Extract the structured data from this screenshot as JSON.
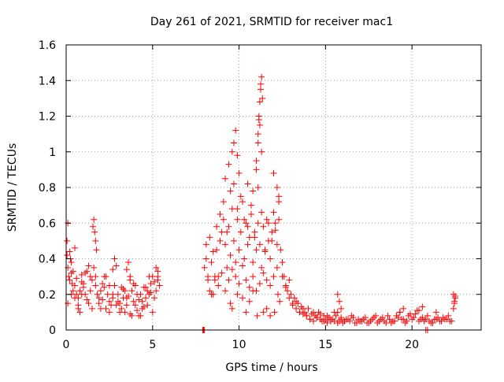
{
  "chart_data": {
    "type": "scatter",
    "title": "Day 261 of 2021, SRMTID for receiver mac1",
    "xlabel": "GPS time / hours",
    "ylabel": "SRMTID / TECUs",
    "xlim": [
      0,
      24
    ],
    "ylim": [
      0,
      1.6
    ],
    "xticks": [
      0,
      5,
      10,
      15,
      20
    ],
    "xtick_labels": [
      "0",
      "5",
      "10",
      "15",
      "20"
    ],
    "yticks": [
      0,
      0.2,
      0.4,
      0.6,
      0.8,
      1,
      1.2,
      1.4,
      1.6
    ],
    "ytick_labels": [
      "0",
      "0.2",
      "0.4",
      "0.6",
      "0.8",
      "1",
      "1.2",
      "1.4",
      "1.6"
    ],
    "grid": true,
    "marker": "+",
    "color": "#ff0000",
    "series": [
      {
        "name": "SRMTID",
        "x": [
          0.05,
          0.1,
          0.15,
          0.2,
          0.25,
          0.3,
          0.35,
          0.4,
          0.5,
          0.6,
          0.7,
          0.8,
          0.9,
          1.0,
          1.1,
          1.2,
          1.3,
          1.4,
          1.5,
          1.6,
          1.7,
          1.8,
          1.9,
          2.0,
          2.1,
          2.2,
          2.3,
          2.4,
          2.5,
          2.6,
          2.7,
          2.8,
          2.9,
          3.0,
          3.1,
          3.2,
          3.3,
          3.4,
          3.5,
          3.6,
          3.7,
          3.8,
          3.9,
          4.0,
          4.1,
          4.2,
          4.3,
          4.4,
          4.5,
          4.6,
          4.7,
          4.8,
          4.9,
          5.0,
          5.1,
          5.2,
          5.3,
          5.4,
          0.05,
          0.1,
          0.2,
          0.3,
          0.4,
          0.5,
          0.6,
          0.7,
          0.8,
          0.9,
          1.0,
          1.2,
          1.4,
          1.55,
          1.6,
          1.65,
          1.7,
          1.75,
          2.0,
          2.2,
          2.5,
          2.7,
          2.8,
          3.0,
          3.2,
          3.4,
          3.5,
          3.6,
          3.7,
          3.8,
          4.0,
          4.2,
          4.4,
          4.6,
          4.8,
          5.0,
          5.2,
          5.3,
          0.1,
          0.3,
          0.5,
          0.7,
          0.9,
          1.1,
          1.3,
          1.5,
          1.7,
          1.9,
          2.1,
          2.3,
          2.5,
          2.7,
          2.9,
          3.1,
          3.3,
          3.5,
          3.7,
          3.9,
          4.1,
          4.3,
          4.5,
          4.7,
          4.9,
          5.1,
          5.3,
          7.9,
          7.95,
          8.0,
          8.0,
          8.1,
          8.2,
          8.3,
          8.4,
          8.5,
          8.6,
          8.7,
          8.8,
          8.9,
          9.0,
          9.1,
          9.2,
          9.3,
          9.4,
          9.5,
          9.6,
          9.7,
          9.8,
          9.9,
          10.0,
          10.1,
          10.2,
          10.3,
          10.4,
          10.5,
          10.6,
          10.7,
          10.8,
          10.9,
          11.0,
          11.1,
          11.2,
          11.3,
          11.4,
          11.5,
          11.6,
          11.7,
          11.8,
          11.9,
          12.0,
          12.1,
          12.2,
          12.3,
          8.2,
          8.4,
          8.6,
          8.8,
          9.0,
          9.2,
          9.4,
          9.6,
          9.8,
          10.0,
          10.2,
          10.4,
          10.6,
          10.8,
          11.0,
          11.2,
          11.4,
          11.6,
          11.8,
          12.0,
          12.2,
          8.1,
          8.3,
          8.5,
          8.7,
          8.9,
          9.1,
          9.3,
          9.5,
          9.7,
          9.9,
          10.1,
          10.3,
          10.5,
          10.7,
          10.9,
          11.1,
          11.3,
          11.5,
          11.7,
          11.9,
          12.1,
          12.3,
          9.2,
          9.4,
          9.6,
          9.7,
          9.8,
          9.9,
          10.0,
          10.5,
          10.8,
          11.0,
          11.1,
          11.15,
          11.2,
          11.25,
          11.3,
          11.35,
          11.1,
          11.2,
          11.0,
          11.3,
          11.15,
          11.25,
          12.0,
          12.2,
          12.3,
          9.5,
          9.6,
          9.9,
          10.2,
          10.4,
          10.6,
          10.8,
          11.05,
          11.4,
          11.6,
          11.8,
          12.05,
          12.25,
          12.35,
          12.4,
          12.5,
          12.6,
          12.7,
          12.8,
          12.9,
          13.0,
          13.1,
          13.2,
          13.3,
          13.4,
          13.5,
          13.6,
          13.7,
          13.8,
          13.9,
          14.0,
          14.1,
          14.2,
          14.3,
          14.4,
          14.5,
          14.6,
          14.7,
          14.8,
          14.9,
          15.0,
          15.1,
          15.2,
          15.3,
          15.4,
          15.5,
          15.6,
          15.7,
          15.8,
          15.9,
          16.0,
          16.2,
          16.4,
          16.6,
          16.8,
          17.0,
          17.2,
          17.4,
          17.6,
          17.8,
          18.0,
          18.2,
          18.4,
          18.6,
          18.8,
          19.0,
          19.2,
          19.4,
          19.6,
          19.8,
          20.0,
          20.2,
          20.4,
          20.6,
          20.8,
          21.0,
          21.2,
          21.4,
          21.6,
          21.8,
          22.0,
          22.2,
          22.4,
          22.5,
          12.5,
          12.7,
          12.9,
          13.1,
          13.3,
          13.5,
          13.7,
          13.9,
          14.1,
          14.3,
          14.5,
          14.7,
          14.9,
          15.1,
          15.3,
          15.5,
          15.7,
          15.9,
          16.1,
          16.3,
          16.5,
          16.7,
          16.9,
          17.1,
          17.3,
          17.5,
          17.7,
          17.9,
          18.1,
          18.3,
          18.5,
          18.7,
          18.9,
          19.1,
          19.3,
          19.5,
          19.7,
          19.9,
          20.1,
          20.3,
          20.5,
          20.7,
          20.9,
          21.1,
          21.3,
          21.5,
          21.7,
          21.9,
          22.1,
          22.3,
          22.45,
          15.7,
          15.8,
          15.9,
          19.3,
          19.5,
          20.4,
          20.6,
          21.4,
          22.4,
          22.45,
          22.5,
          20.8,
          20.9
        ],
        "y": [
          0.42,
          0.35,
          0.3,
          0.28,
          0.4,
          0.32,
          0.26,
          0.22,
          0.25,
          0.2,
          0.18,
          0.22,
          0.27,
          0.24,
          0.2,
          0.17,
          0.15,
          0.22,
          0.28,
          0.35,
          0.25,
          0.2,
          0.18,
          0.22,
          0.17,
          0.24,
          0.3,
          0.2,
          0.16,
          0.14,
          0.18,
          0.25,
          0.36,
          0.2,
          0.15,
          0.12,
          0.18,
          0.22,
          0.14,
          0.19,
          0.3,
          0.22,
          0.16,
          0.14,
          0.11,
          0.17,
          0.2,
          0.16,
          0.13,
          0.18,
          0.22,
          0.2,
          0.26,
          0.3,
          0.27,
          0.22,
          0.3,
          0.25,
          0.5,
          0.6,
          0.44,
          0.38,
          0.33,
          0.46,
          0.29,
          0.12,
          0.1,
          0.31,
          0.26,
          0.33,
          0.3,
          0.58,
          0.62,
          0.55,
          0.5,
          0.45,
          0.12,
          0.3,
          0.1,
          0.34,
          0.4,
          0.16,
          0.24,
          0.1,
          0.34,
          0.38,
          0.28,
          0.08,
          0.25,
          0.08,
          0.12,
          0.24,
          0.3,
          0.1,
          0.35,
          0.28,
          0.15,
          0.2,
          0.18,
          0.14,
          0.2,
          0.32,
          0.36,
          0.12,
          0.3,
          0.15,
          0.26,
          0.12,
          0.25,
          0.2,
          0.14,
          0.1,
          0.23,
          0.18,
          0.09,
          0.26,
          0.2,
          0.08,
          0.24,
          0.14,
          0.21,
          0.18,
          0.33,
          0,
          0,
          0,
          0.35,
          0.4,
          0.3,
          0.22,
          0.38,
          0.2,
          0.28,
          0.45,
          0.3,
          0.5,
          0.55,
          0.62,
          0.48,
          0.35,
          0.58,
          0.42,
          0.68,
          0.5,
          0.38,
          0.62,
          0.45,
          0.55,
          0.72,
          0.4,
          0.6,
          0.48,
          0.52,
          0.65,
          0.38,
          0.55,
          0.45,
          0.6,
          0.48,
          0.35,
          0.58,
          0.44,
          0.62,
          0.5,
          0.4,
          0.55,
          0.66,
          0.6,
          0.48,
          0.72,
          0.28,
          0.2,
          0.3,
          0.25,
          0.32,
          0.22,
          0.28,
          0.34,
          0.3,
          0.26,
          0.36,
          0.28,
          0.24,
          0.3,
          0.22,
          0.26,
          0.32,
          0.28,
          0.25,
          0.3,
          0.35,
          0.48,
          0.52,
          0.44,
          0.58,
          0.65,
          0.72,
          0.55,
          0.78,
          0.82,
          0.68,
          0.75,
          0.62,
          0.58,
          0.7,
          0.52,
          0.8,
          0.66,
          0.45,
          0.6,
          0.5,
          0.56,
          0.62,
          0.85,
          0.93,
          1.0,
          1.05,
          1.12,
          0.98,
          0.88,
          0.82,
          0.78,
          0.95,
          1.1,
          1.2,
          1.28,
          1.35,
          1.42,
          1.3,
          1.05,
          1.15,
          0.9,
          1.0,
          1.18,
          1.38,
          0.88,
          0.8,
          0.75,
          0.15,
          0.12,
          0.2,
          0.18,
          0.1,
          0.16,
          0.22,
          0.08,
          0.1,
          0.12,
          0.08,
          0.1,
          0.2,
          0.16,
          0.45,
          0.38,
          0.3,
          0.25,
          0.22,
          0.28,
          0.2,
          0.15,
          0.18,
          0.12,
          0.15,
          0.1,
          0.13,
          0.09,
          0.1,
          0.08,
          0.12,
          0.06,
          0.09,
          0.05,
          0.08,
          0.07,
          0.1,
          0.06,
          0.05,
          0.08,
          0.06,
          0.04,
          0.07,
          0.05,
          0.06,
          0.05,
          0.08,
          0.1,
          0.05,
          0.06,
          0.04,
          0.06,
          0.05,
          0.07,
          0.04,
          0.05,
          0.06,
          0.04,
          0.05,
          0.07,
          0.04,
          0.06,
          0.05,
          0.08,
          0.04,
          0.05,
          0.07,
          0.06,
          0.04,
          0.08,
          0.06,
          0.09,
          0.05,
          0.07,
          0.06,
          0.05,
          0.04,
          0.06,
          0.05,
          0.07,
          0.06,
          0.05,
          0.12,
          0.18,
          0.3,
          0.24,
          0.18,
          0.14,
          0.16,
          0.1,
          0.12,
          0.08,
          0.06,
          0.1,
          0.07,
          0.09,
          0.05,
          0.08,
          0.06,
          0.1,
          0.04,
          0.07,
          0.05,
          0.06,
          0.08,
          0.04,
          0.06,
          0.05,
          0.07,
          0.04,
          0.06,
          0.08,
          0.05,
          0.07,
          0.04,
          0.06,
          0.05,
          0.08,
          0.1,
          0.06,
          0.05,
          0.09,
          0.07,
          0.11,
          0.06,
          0.05,
          0.08,
          0.04,
          0.06,
          0.07,
          0.05,
          0.06,
          0.08,
          0.05,
          0.15,
          0.2,
          0.16,
          0.12,
          0.1,
          0.12,
          0.11,
          0.13,
          0.1,
          0.2,
          0.16,
          0.19,
          0.0,
          0.0
        ]
      }
    ]
  }
}
